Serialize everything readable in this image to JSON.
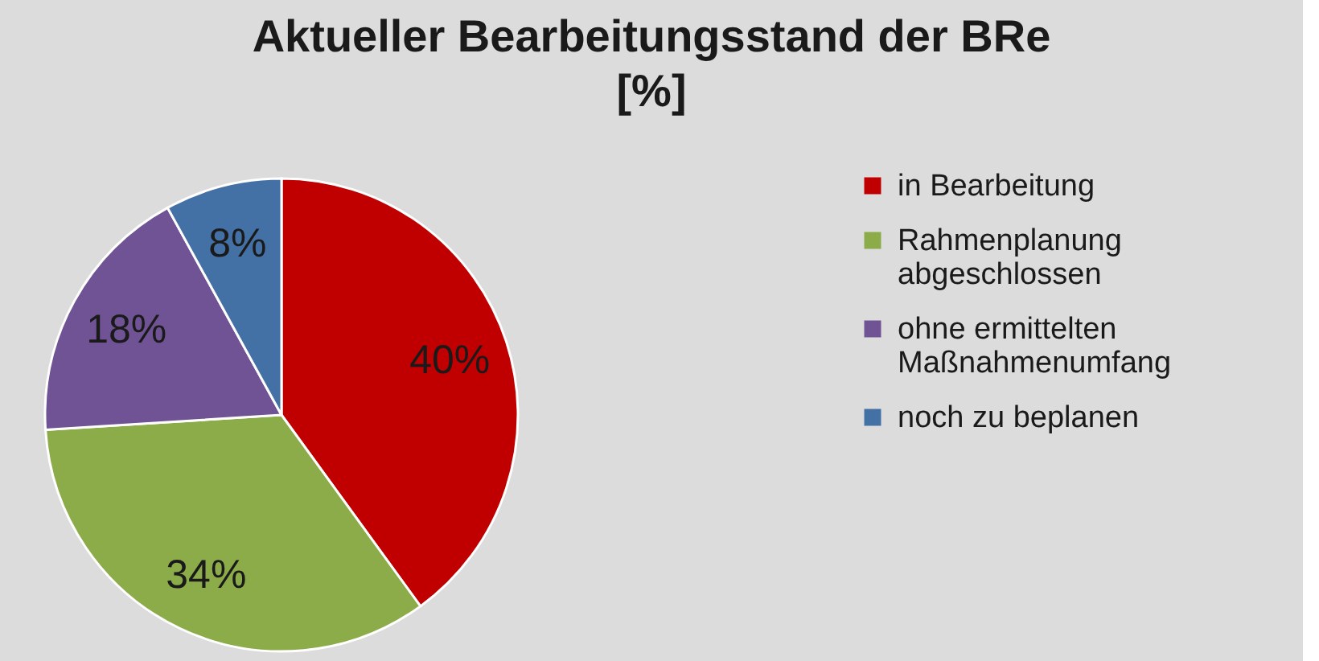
{
  "chart_data": {
    "type": "pie",
    "title": "Aktueller Bearbeitungsstand der BRe\n[%]",
    "categories": [
      "in Bearbeitung",
      "Rahmenplanung abgeschlossen",
      "ohne ermittelten Maßnahmenumfang",
      "noch zu beplanen"
    ],
    "values": [
      40,
      34,
      18,
      8
    ],
    "value_labels": [
      "40%",
      "34%",
      "18%",
      "8%"
    ],
    "colors": [
      "#c00000",
      "#8cab49",
      "#6f5394",
      "#4471a5"
    ],
    "legend": "right"
  }
}
